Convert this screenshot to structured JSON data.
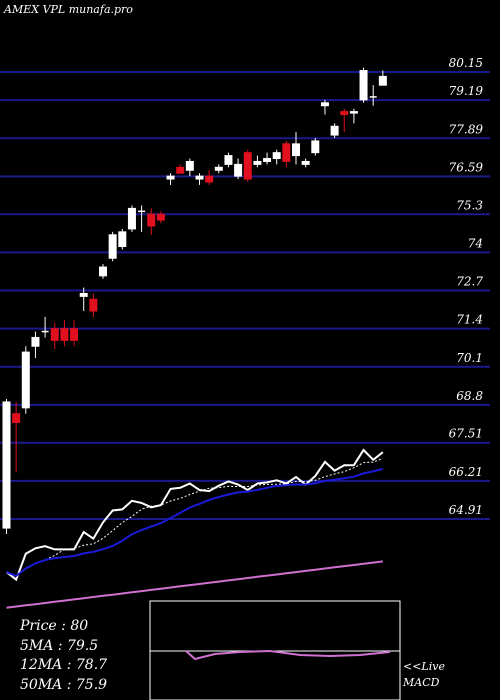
{
  "header": {
    "title": "AMEX VPL munafa.pro"
  },
  "colors": {
    "background": "#000000",
    "gridline": "#1a1a8c",
    "up_candle": "#ffffff",
    "down_candle": "#e0101e",
    "price_line": "#ffffff",
    "ma_short": "#ffffff",
    "ma_mid": "#1a1ad8",
    "ma_long": "#d070d0",
    "macd_line": "#d070d0",
    "macd_signal": "#ffffff"
  },
  "chart_data": {
    "type": "candlestick",
    "ylim": [
      64.5,
      81.0
    ],
    "y_ticks": [
      "80.15",
      "79.19",
      "77.89",
      "76.59",
      "75.3",
      "74",
      "72.7",
      "71.4",
      "70.1",
      "68.8",
      "67.51",
      "66.21",
      "64.91"
    ],
    "candles": [
      {
        "o": 64.6,
        "h": 69.0,
        "l": 64.4,
        "c": 68.9,
        "dir": "up"
      },
      {
        "o": 68.5,
        "h": 68.9,
        "l": 66.5,
        "c": 68.2,
        "dir": "down"
      },
      {
        "o": 68.7,
        "h": 70.8,
        "l": 68.5,
        "c": 70.6,
        "dir": "up"
      },
      {
        "o": 70.8,
        "h": 71.3,
        "l": 70.4,
        "c": 71.1,
        "dir": "up"
      },
      {
        "o": 71.3,
        "h": 71.8,
        "l": 71.1,
        "c": 71.3,
        "dir": "doji"
      },
      {
        "o": 71.4,
        "h": 71.6,
        "l": 70.7,
        "c": 71.0,
        "dir": "down"
      },
      {
        "o": 71.4,
        "h": 71.7,
        "l": 70.8,
        "c": 71.0,
        "dir": "down"
      },
      {
        "o": 71.4,
        "h": 71.7,
        "l": 70.8,
        "c": 71.0,
        "dir": "down"
      },
      {
        "o": 72.5,
        "h": 72.8,
        "l": 72.0,
        "c": 72.6,
        "dir": "up"
      },
      {
        "o": 72.4,
        "h": 72.6,
        "l": 71.8,
        "c": 72.0,
        "dir": "down"
      },
      {
        "o": 73.2,
        "h": 73.6,
        "l": 73.1,
        "c": 73.5,
        "dir": "up"
      },
      {
        "o": 73.8,
        "h": 74.7,
        "l": 73.7,
        "c": 74.6,
        "dir": "up"
      },
      {
        "o": 74.2,
        "h": 74.8,
        "l": 74.1,
        "c": 74.7,
        "dir": "up"
      },
      {
        "o": 74.8,
        "h": 75.6,
        "l": 74.7,
        "c": 75.5,
        "dir": "up"
      },
      {
        "o": 75.4,
        "h": 75.6,
        "l": 74.7,
        "c": 75.3,
        "dir": "doji"
      },
      {
        "o": 75.3,
        "h": 75.5,
        "l": 74.6,
        "c": 74.9,
        "dir": "down"
      },
      {
        "o": 75.3,
        "h": 75.4,
        "l": 75.0,
        "c": 75.1,
        "dir": "down"
      },
      {
        "o": 76.5,
        "h": 76.7,
        "l": 76.3,
        "c": 76.6,
        "dir": "up"
      },
      {
        "o": 76.9,
        "h": 77.0,
        "l": 76.7,
        "c": 76.7,
        "dir": "down"
      },
      {
        "o": 76.8,
        "h": 77.2,
        "l": 76.6,
        "c": 77.1,
        "dir": "up"
      },
      {
        "o": 76.6,
        "h": 76.7,
        "l": 76.3,
        "c": 76.5,
        "dir": "up"
      },
      {
        "o": 76.6,
        "h": 76.8,
        "l": 76.3,
        "c": 76.4,
        "dir": "down"
      },
      {
        "o": 76.8,
        "h": 77.0,
        "l": 76.7,
        "c": 76.9,
        "dir": "up"
      },
      {
        "o": 77.0,
        "h": 77.4,
        "l": 76.9,
        "c": 77.3,
        "dir": "up"
      },
      {
        "o": 76.6,
        "h": 77.2,
        "l": 76.5,
        "c": 77.0,
        "dir": "up"
      },
      {
        "o": 77.4,
        "h": 77.5,
        "l": 76.4,
        "c": 76.5,
        "dir": "down"
      },
      {
        "o": 77.0,
        "h": 77.3,
        "l": 76.9,
        "c": 77.1,
        "dir": "up"
      },
      {
        "o": 77.1,
        "h": 77.4,
        "l": 77.0,
        "c": 77.2,
        "dir": "up"
      },
      {
        "o": 77.2,
        "h": 77.5,
        "l": 77.0,
        "c": 77.4,
        "dir": "up"
      },
      {
        "o": 77.7,
        "h": 77.8,
        "l": 76.9,
        "c": 77.1,
        "dir": "down"
      },
      {
        "o": 77.3,
        "h": 78.1,
        "l": 77.0,
        "c": 77.7,
        "dir": "up"
      },
      {
        "o": 77.1,
        "h": 77.2,
        "l": 76.9,
        "c": 77.0,
        "dir": "up"
      },
      {
        "o": 77.4,
        "h": 77.9,
        "l": 77.3,
        "c": 77.8,
        "dir": "up"
      },
      {
        "o": 79.0,
        "h": 79.2,
        "l": 78.7,
        "c": 79.1,
        "dir": "up"
      },
      {
        "o": 78.0,
        "h": 78.4,
        "l": 77.9,
        "c": 78.3,
        "dir": "up"
      },
      {
        "o": 78.7,
        "h": 78.9,
        "l": 78.1,
        "c": 78.8,
        "dir": "down"
      },
      {
        "o": 78.8,
        "h": 78.9,
        "l": 78.4,
        "c": 78.8,
        "dir": "up"
      },
      {
        "o": 79.2,
        "h": 80.3,
        "l": 79.1,
        "c": 80.2,
        "dir": "up"
      },
      {
        "o": 79.3,
        "h": 79.7,
        "l": 79.0,
        "c": 79.3,
        "dir": "doji"
      },
      {
        "o": 79.7,
        "h": 80.2,
        "l": 79.7,
        "c": 80.0,
        "dir": "up"
      }
    ]
  },
  "stats": {
    "price": "Price   :  80",
    "ma5": "5MA : 79.5",
    "ma12": "12MA : 78.7",
    "ma50": "50MA : 75.9"
  },
  "macd": {
    "label_line1": "<<Live",
    "label_line2": "MACD"
  }
}
